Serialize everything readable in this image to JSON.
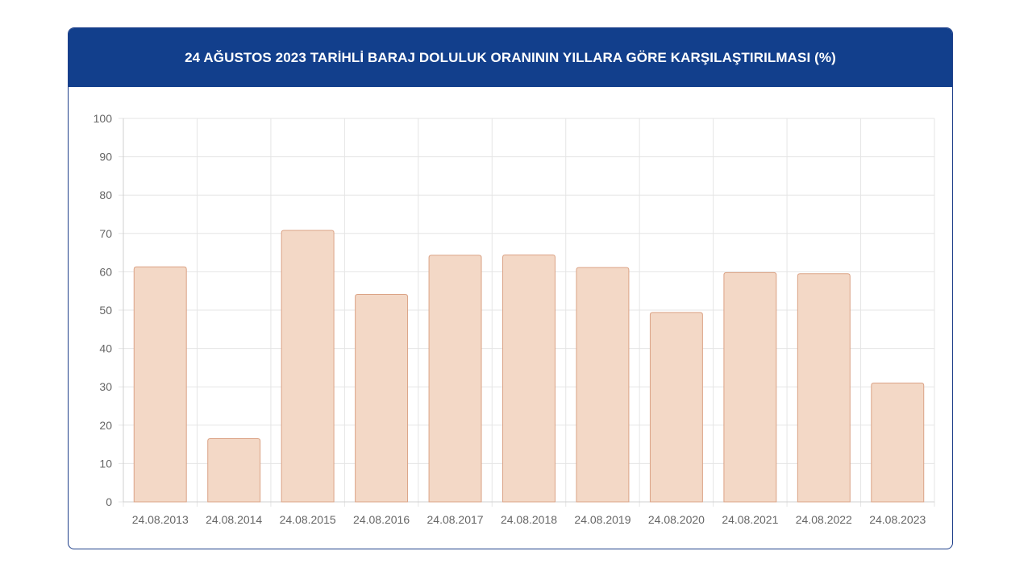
{
  "chart_data": {
    "type": "bar",
    "title": "24 AĞUSTOS 2023 TARİHLİ BARAJ DOLULUK ORANININ YILLARA GÖRE KARŞILAŞTIRILMASI (%)",
    "categories": [
      "24.08.2013",
      "24.08.2014",
      "24.08.2015",
      "24.08.2016",
      "24.08.2017",
      "24.08.2018",
      "24.08.2019",
      "24.08.2020",
      "24.08.2021",
      "24.08.2022",
      "24.08.2023"
    ],
    "values": [
      61.3,
      16.5,
      70.8,
      54.1,
      64.3,
      64.4,
      61.1,
      49.4,
      59.8,
      59.5,
      31.0
    ],
    "ylim": [
      0,
      100
    ],
    "yticks": [
      "0",
      "10",
      "20",
      "30",
      "40",
      "50",
      "60",
      "70",
      "80",
      "90",
      "100"
    ],
    "xlabel": "",
    "ylabel": "",
    "grid": true,
    "legend": "none",
    "colors": {
      "header_bg": "#123f8c",
      "bar_fill": "#f3d8c6",
      "bar_stroke": "#dba386",
      "grid": "#e5e5e5"
    }
  }
}
